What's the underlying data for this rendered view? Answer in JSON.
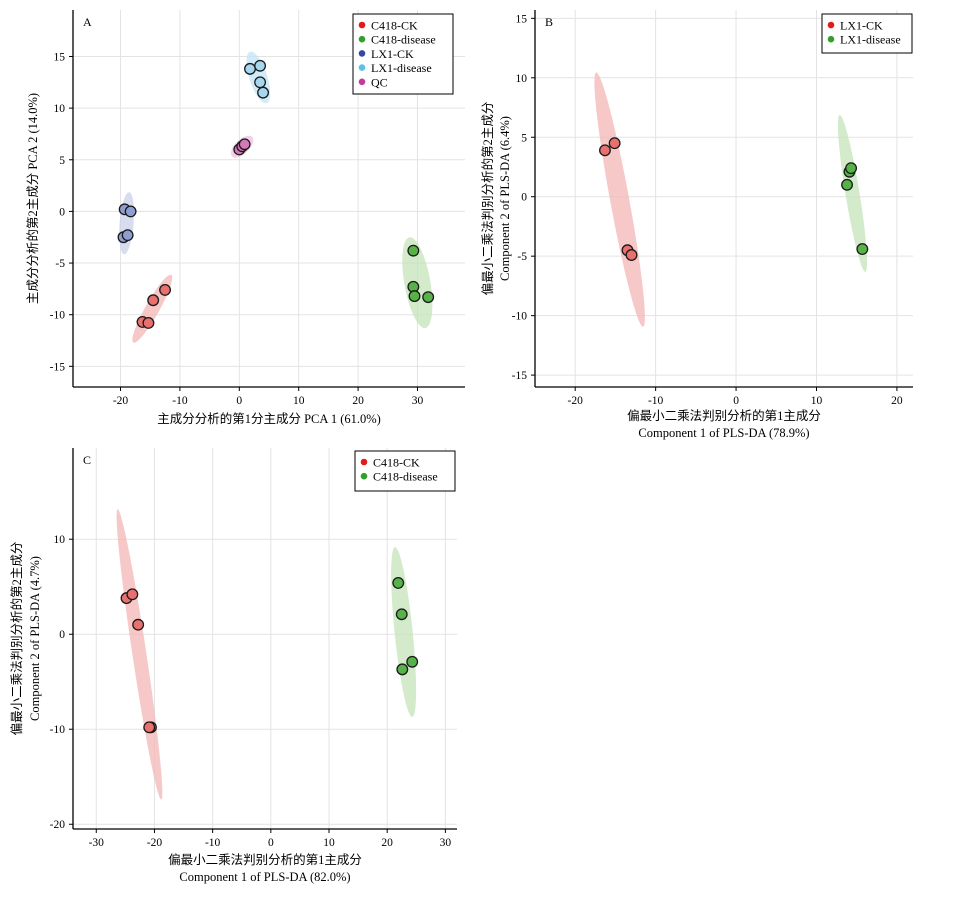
{
  "panels": [
    {
      "letter": "A",
      "xlabel": [
        "主成分分析的第1分主成分 PCA 1 (61.0%)"
      ],
      "ylabel": [
        "主成分分析的第2主成分 PCA 2 (14.0%)"
      ],
      "legend": [
        {
          "name": "C418-CK",
          "color": "#e31a1c"
        },
        {
          "name": "C418-disease",
          "color": "#33a02c"
        },
        {
          "name": "LX1-CK",
          "color": "#3347a6"
        },
        {
          "name": "LX1-disease",
          "color": "#5bc2e7"
        },
        {
          "name": "QC",
          "color": "#c43a9b"
        }
      ]
    },
    {
      "letter": "B",
      "xlabel": [
        "偏最小二乘法判别分析的第1主成分",
        "Component 1 of PLS-DA (78.9%)"
      ],
      "ylabel": [
        "偏最小二乘法判别分析的第2主成分",
        "Component 2 of PLS-DA (6.4%)"
      ],
      "legend": [
        {
          "name": "LX1-CK",
          "color": "#e31a1c"
        },
        {
          "name": "LX1-disease",
          "color": "#33a02c"
        }
      ]
    },
    {
      "letter": "C",
      "xlabel": [
        "偏最小二乘法判别分析的第1主成分",
        "Component 1 of PLS-DA (82.0%)"
      ],
      "ylabel": [
        "偏最小二乘法判别分析的第2主成分",
        "Component 2 of PLS-DA (4.7%)"
      ],
      "legend": [
        {
          "name": "C418-CK",
          "color": "#e31a1c"
        },
        {
          "name": "C418-disease",
          "color": "#33a02c"
        }
      ]
    }
  ],
  "chart_data": [
    {
      "type": "scatter",
      "panel": "A",
      "xlim": [
        -28,
        38
      ],
      "ylim": [
        -17,
        19.5
      ],
      "xticks": [
        -20,
        -10,
        0,
        10,
        20,
        30
      ],
      "yticks": [
        -15,
        -10,
        -5,
        0,
        5,
        10,
        15
      ],
      "grid": true,
      "legend_position": "top-right",
      "series": [
        {
          "name": "C418-CK",
          "color": "#e8706f",
          "ellipse_color": "#f4b6b6",
          "points": [
            [
              -12.5,
              -7.6
            ],
            [
              -14.5,
              -8.6
            ],
            [
              -16.3,
              -10.7
            ],
            [
              -15.3,
              -10.8
            ]
          ]
        },
        {
          "name": "C418-disease",
          "color": "#57b349",
          "ellipse_color": "#c4e3b9",
          "points": [
            [
              29.3,
              -3.8
            ],
            [
              29.3,
              -7.3
            ],
            [
              29.5,
              -8.2
            ],
            [
              31.8,
              -8.3
            ]
          ]
        },
        {
          "name": "LX1-CK",
          "color": "#8e9ed0",
          "ellipse_color": "#c9d1ea",
          "points": [
            [
              -19.3,
              0.2
            ],
            [
              -18.3,
              0.0
            ],
            [
              -19.5,
              -2.5
            ],
            [
              -18.8,
              -2.3
            ]
          ]
        },
        {
          "name": "LX1-disease",
          "color": "#a7d7ef",
          "ellipse_color": "#c3e4f5",
          "points": [
            [
              1.8,
              13.8
            ],
            [
              3.5,
              14.1
            ],
            [
              3.5,
              12.5
            ],
            [
              4.0,
              11.5
            ]
          ]
        },
        {
          "name": "QC",
          "color": "#d478b8",
          "ellipse_color": "#eec1df",
          "points": [
            [
              0.0,
              6.0
            ],
            [
              0.5,
              6.3
            ],
            [
              0.9,
              6.5
            ]
          ]
        }
      ]
    },
    {
      "type": "scatter",
      "panel": "B",
      "xlim": [
        -25,
        22
      ],
      "ylim": [
        -16,
        15.7
      ],
      "xticks": [
        -20,
        -10,
        0,
        10,
        20
      ],
      "yticks": [
        -15,
        -10,
        -5,
        0,
        5,
        10,
        15
      ],
      "grid": true,
      "legend_position": "top-right",
      "series": [
        {
          "name": "LX1-CK",
          "color": "#e8706f",
          "ellipse_color": "#f4b6b6",
          "points": [
            [
              -16.3,
              3.9
            ],
            [
              -15.1,
              4.5
            ],
            [
              -13.5,
              -4.5
            ],
            [
              -13.0,
              -4.9
            ]
          ]
        },
        {
          "name": "LX1-disease",
          "color": "#57b349",
          "ellipse_color": "#c4e3b9",
          "points": [
            [
              13.8,
              1.0
            ],
            [
              14.1,
              2.1
            ],
            [
              14.3,
              2.4
            ],
            [
              15.7,
              -4.4
            ]
          ]
        }
      ]
    },
    {
      "type": "scatter",
      "panel": "C",
      "xlim": [
        -34,
        32
      ],
      "ylim": [
        -20.5,
        19.6
      ],
      "xticks": [
        -30,
        -20,
        -10,
        0,
        10,
        20,
        30
      ],
      "yticks": [
        -20,
        -10,
        0,
        10
      ],
      "grid": true,
      "legend_position": "top-right",
      "series": [
        {
          "name": "C418-CK",
          "color": "#e8706f",
          "ellipse_color": "#f4b6b6",
          "points": [
            [
              -24.8,
              3.8
            ],
            [
              -23.8,
              4.2
            ],
            [
              -22.8,
              1.0
            ],
            [
              -20.6,
              -9.8
            ],
            [
              -20.9,
              -9.8
            ]
          ]
        },
        {
          "name": "C418-disease",
          "color": "#57b349",
          "ellipse_color": "#c4e3b9",
          "points": [
            [
              21.9,
              5.4
            ],
            [
              22.5,
              2.1
            ],
            [
              22.6,
              -3.7
            ],
            [
              24.3,
              -2.9
            ]
          ]
        }
      ]
    }
  ]
}
